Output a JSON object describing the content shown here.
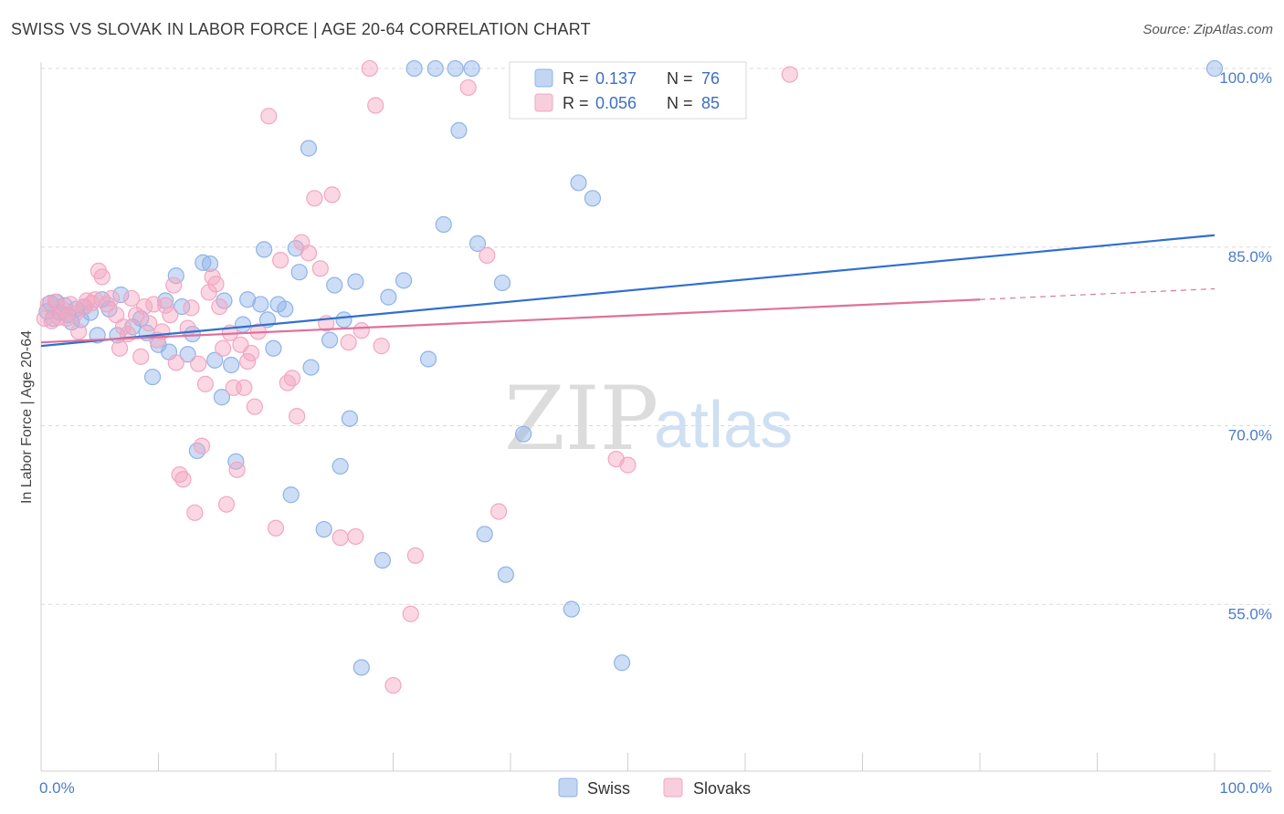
{
  "title": "SWISS VS SLOVAK IN LABOR FORCE | AGE 20-64 CORRELATION CHART",
  "source": "Source: ZipAtlas.com",
  "watermark": {
    "zip": "ZIP",
    "atlas": "atlas"
  },
  "legend_stats": [
    {
      "r_label": "R = ",
      "r_value": "0.137",
      "n_label": "N = ",
      "n_value": "76",
      "color": "#8fb3e8"
    },
    {
      "r_label": "R = ",
      "r_value": "0.056",
      "n_label": "N = ",
      "n_value": "85",
      "color": "#f3a6c0"
    }
  ],
  "chart_data": {
    "type": "scatter",
    "title": "SWISS VS SLOVAK IN LABOR FORCE | AGE 20-64 CORRELATION CHART",
    "xlabel": "",
    "ylabel": "In Labor Force | Age 20-64",
    "xlim": [
      0,
      100
    ],
    "ylim": [
      41,
      101
    ],
    "x_tick_labels": [
      "0.0%",
      "100.0%"
    ],
    "y_ticks": [
      {
        "value": 55,
        "label": "55.0%"
      },
      {
        "value": 70,
        "label": "70.0%"
      },
      {
        "value": 85,
        "label": "85.0%"
      },
      {
        "value": 100,
        "label": "100.0%"
      }
    ],
    "grid": "horizontal dashed",
    "legend_position": "bottom-center",
    "series": [
      {
        "name": "Swiss",
        "color": "#8fb3e8",
        "line_color": "#2f6fd1",
        "trend": {
          "x": [
            0,
            100
          ],
          "y": [
            76.7,
            86.0
          ]
        },
        "points": [
          [
            0.5,
            79.6
          ],
          [
            0.8,
            80.3
          ],
          [
            1.0,
            79.0
          ],
          [
            1.3,
            80.4
          ],
          [
            1.6,
            79.5
          ],
          [
            2.0,
            80.1
          ],
          [
            2.3,
            79.3
          ],
          [
            2.6,
            78.7
          ],
          [
            3.0,
            79.8
          ],
          [
            3.4,
            78.9
          ],
          [
            3.7,
            80.0
          ],
          [
            4.2,
            79.5
          ],
          [
            4.8,
            77.6
          ],
          [
            5.2,
            80.6
          ],
          [
            5.8,
            79.8
          ],
          [
            6.5,
            77.6
          ],
          [
            6.8,
            81.0
          ],
          [
            7.8,
            78.3
          ],
          [
            8.5,
            79.0
          ],
          [
            9.0,
            77.8
          ],
          [
            9.5,
            74.1
          ],
          [
            10.0,
            76.8
          ],
          [
            10.6,
            80.5
          ],
          [
            10.9,
            76.2
          ],
          [
            11.5,
            82.6
          ],
          [
            12.0,
            80.0
          ],
          [
            12.5,
            76.0
          ],
          [
            12.9,
            77.7
          ],
          [
            13.3,
            67.9
          ],
          [
            13.8,
            83.7
          ],
          [
            14.4,
            83.6
          ],
          [
            14.8,
            75.5
          ],
          [
            15.4,
            72.4
          ],
          [
            15.6,
            80.5
          ],
          [
            16.2,
            75.1
          ],
          [
            16.6,
            67.0
          ],
          [
            17.2,
            78.5
          ],
          [
            17.6,
            80.6
          ],
          [
            18.7,
            80.2
          ],
          [
            19.0,
            84.8
          ],
          [
            19.3,
            78.9
          ],
          [
            19.8,
            76.5
          ],
          [
            20.2,
            80.2
          ],
          [
            20.8,
            79.8
          ],
          [
            21.3,
            64.2
          ],
          [
            21.7,
            84.9
          ],
          [
            22.0,
            82.9
          ],
          [
            22.8,
            93.3
          ],
          [
            23.0,
            74.9
          ],
          [
            24.1,
            61.3
          ],
          [
            24.6,
            77.2
          ],
          [
            25.0,
            81.8
          ],
          [
            25.5,
            66.6
          ],
          [
            25.8,
            78.9
          ],
          [
            26.3,
            70.6
          ],
          [
            26.8,
            82.1
          ],
          [
            27.3,
            49.7
          ],
          [
            29.1,
            58.7
          ],
          [
            29.6,
            80.8
          ],
          [
            30.9,
            82.2
          ],
          [
            31.8,
            100.0
          ],
          [
            33.0,
            75.6
          ],
          [
            33.6,
            100.0
          ],
          [
            34.3,
            86.9
          ],
          [
            35.3,
            100.0
          ],
          [
            35.6,
            94.8
          ],
          [
            36.7,
            100.0
          ],
          [
            37.2,
            85.3
          ],
          [
            37.8,
            60.9
          ],
          [
            39.3,
            82.0
          ],
          [
            39.6,
            57.5
          ],
          [
            41.1,
            69.3
          ],
          [
            45.2,
            54.6
          ],
          [
            45.8,
            90.4
          ],
          [
            47.0,
            89.1
          ],
          [
            49.5,
            50.1
          ],
          [
            100.0,
            100.0
          ]
        ]
      },
      {
        "name": "Slovaks",
        "color": "#f3a6c0",
        "line_color": "#e0709a",
        "trend": {
          "x": [
            0,
            80
          ],
          "y": [
            77.0,
            80.6
          ]
        },
        "trend_dashed": {
          "x": [
            80,
            100
          ],
          "y": [
            80.6,
            81.5
          ]
        },
        "points": [
          [
            0.3,
            79.0
          ],
          [
            0.6,
            80.2
          ],
          [
            0.9,
            78.8
          ],
          [
            1.2,
            80.4
          ],
          [
            1.5,
            79.1
          ],
          [
            1.8,
            79.8
          ],
          [
            2.2,
            79.0
          ],
          [
            2.5,
            80.2
          ],
          [
            2.9,
            79.4
          ],
          [
            3.2,
            77.9
          ],
          [
            3.6,
            79.9
          ],
          [
            3.9,
            80.5
          ],
          [
            4.3,
            80.3
          ],
          [
            4.6,
            80.6
          ],
          [
            4.9,
            83.0
          ],
          [
            5.2,
            82.5
          ],
          [
            5.6,
            80.2
          ],
          [
            6.0,
            80.7
          ],
          [
            6.4,
            79.3
          ],
          [
            6.7,
            76.5
          ],
          [
            7.0,
            78.3
          ],
          [
            7.4,
            77.7
          ],
          [
            7.7,
            80.7
          ],
          [
            8.1,
            79.3
          ],
          [
            8.5,
            75.8
          ],
          [
            8.8,
            80.0
          ],
          [
            9.2,
            78.6
          ],
          [
            9.6,
            80.2
          ],
          [
            9.9,
            77.2
          ],
          [
            10.3,
            77.9
          ],
          [
            10.6,
            80.1
          ],
          [
            11.0,
            79.3
          ],
          [
            11.3,
            81.8
          ],
          [
            11.5,
            75.3
          ],
          [
            11.8,
            65.9
          ],
          [
            12.1,
            65.5
          ],
          [
            12.5,
            78.2
          ],
          [
            12.8,
            79.9
          ],
          [
            13.1,
            62.7
          ],
          [
            13.4,
            75.2
          ],
          [
            13.7,
            68.3
          ],
          [
            14.0,
            73.5
          ],
          [
            14.3,
            81.2
          ],
          [
            14.6,
            82.5
          ],
          [
            14.9,
            81.9
          ],
          [
            15.2,
            80.0
          ],
          [
            15.5,
            76.5
          ],
          [
            15.8,
            63.4
          ],
          [
            16.1,
            77.8
          ],
          [
            16.4,
            73.2
          ],
          [
            16.7,
            66.3
          ],
          [
            17.0,
            76.8
          ],
          [
            17.3,
            73.2
          ],
          [
            17.6,
            75.4
          ],
          [
            17.9,
            76.1
          ],
          [
            18.2,
            71.6
          ],
          [
            18.5,
            77.9
          ],
          [
            19.4,
            96.0
          ],
          [
            20.0,
            61.4
          ],
          [
            20.4,
            83.9
          ],
          [
            21.0,
            73.6
          ],
          [
            21.4,
            74.0
          ],
          [
            21.8,
            70.8
          ],
          [
            22.2,
            85.4
          ],
          [
            22.8,
            84.5
          ],
          [
            23.3,
            89.1
          ],
          [
            23.8,
            83.2
          ],
          [
            24.3,
            78.6
          ],
          [
            24.8,
            89.4
          ],
          [
            25.5,
            60.6
          ],
          [
            26.2,
            77.0
          ],
          [
            26.8,
            60.7
          ],
          [
            27.3,
            78.0
          ],
          [
            28.0,
            100.0
          ],
          [
            28.5,
            96.9
          ],
          [
            29.0,
            76.7
          ],
          [
            30.0,
            48.2
          ],
          [
            31.5,
            54.2
          ],
          [
            31.9,
            59.1
          ],
          [
            36.4,
            98.4
          ],
          [
            38.0,
            84.3
          ],
          [
            39.0,
            62.8
          ],
          [
            49.0,
            67.2
          ],
          [
            50.0,
            66.7
          ],
          [
            63.8,
            99.5
          ]
        ]
      }
    ]
  }
}
